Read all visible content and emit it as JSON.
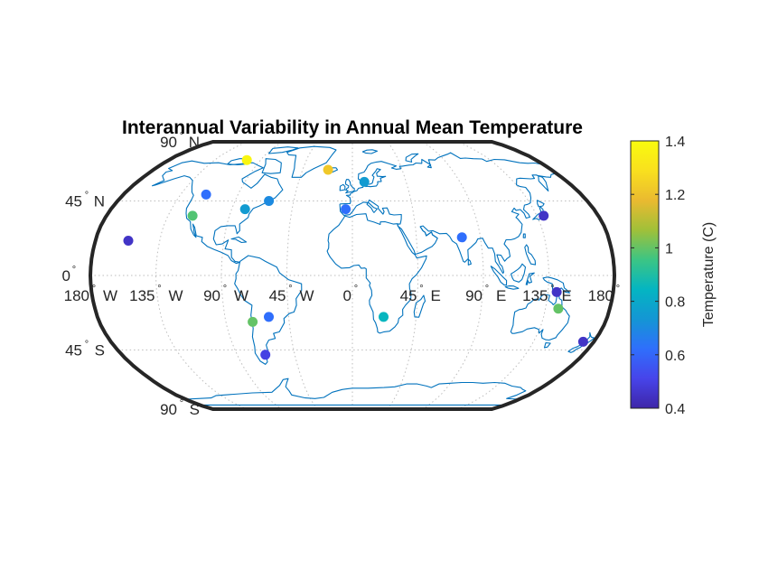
{
  "figure": {
    "title": "Interannual Variability in Annual Mean Temperature"
  },
  "map": {
    "projection": "Robinson",
    "frame_color": "#262626",
    "coastline_color": "#0072bd",
    "graticule": "dotted",
    "latitude_labels": [
      {
        "lat": 90,
        "value": "90",
        "hemi": "N"
      },
      {
        "lat": 45,
        "value": "45",
        "hemi": "N"
      },
      {
        "lat": 0,
        "value": "0",
        "hemi": ""
      },
      {
        "lat": -45,
        "value": "45",
        "hemi": "S"
      },
      {
        "lat": -90,
        "value": "90",
        "hemi": "S"
      }
    ],
    "longitude_labels": [
      {
        "lon": -180,
        "value": "180",
        "hemi": "W"
      },
      {
        "lon": -135,
        "value": "135",
        "hemi": "W"
      },
      {
        "lon": -90,
        "value": "90",
        "hemi": "W"
      },
      {
        "lon": -45,
        "value": "45",
        "hemi": "W"
      },
      {
        "lon": 0,
        "value": "0",
        "hemi": ""
      },
      {
        "lon": 45,
        "value": "45",
        "hemi": "E"
      },
      {
        "lon": 90,
        "value": "90",
        "hemi": "E"
      },
      {
        "lon": 135,
        "value": "135",
        "hemi": "E"
      },
      {
        "lon": 180,
        "value": "180",
        "hemi": ""
      }
    ]
  },
  "colorbar": {
    "label": "Temperature (C)",
    "min": 0.4,
    "max": 1.4,
    "ticks": [
      {
        "value": 0.4,
        "label": "0.4"
      },
      {
        "value": 0.6,
        "label": "0.6"
      },
      {
        "value": 0.8,
        "label": "0.8"
      },
      {
        "value": 1.0,
        "label": "1"
      },
      {
        "value": 1.2,
        "label": "1.2"
      },
      {
        "value": 1.4,
        "label": "1.4"
      }
    ],
    "colormap": [
      "#3e26a8",
      "#4744ea",
      "#2f6ffc",
      "#1496d4",
      "#04b5c2",
      "#3cc584",
      "#a0c039",
      "#eaba30",
      "#f9e01e",
      "#f9fb0e"
    ]
  },
  "stations": [
    {
      "lon": -103.5,
      "lat": 72,
      "value": 1.38
    },
    {
      "lon": -115,
      "lat": 49,
      "value": 0.62
    },
    {
      "lon": -117,
      "lat": 36,
      "value": 0.98
    },
    {
      "lon": -157,
      "lat": 21,
      "value": 0.45
    },
    {
      "lon": -80,
      "lat": 40,
      "value": 0.75
    },
    {
      "lon": -64,
      "lat": 45,
      "value": 0.7
    },
    {
      "lon": -22,
      "lat": 65,
      "value": 1.22
    },
    {
      "lon": 10,
      "lat": 57,
      "value": 0.75
    },
    {
      "lon": -5,
      "lat": 40,
      "value": 0.62
    },
    {
      "lon": 140,
      "lat": 36,
      "value": 0.45
    },
    {
      "lon": 77,
      "lat": 23,
      "value": 0.62
    },
    {
      "lon": 141,
      "lat": -10,
      "value": 0.45
    },
    {
      "lon": 144,
      "lat": -20,
      "value": 1.0
    },
    {
      "lon": 172,
      "lat": -40,
      "value": 0.45
    },
    {
      "lon": 22,
      "lat": -25,
      "value": 0.85
    },
    {
      "lon": -59,
      "lat": -25,
      "value": 0.62
    },
    {
      "lon": -71,
      "lat": -28,
      "value": 1.0
    },
    {
      "lon": -68,
      "lat": -48,
      "value": 0.5
    }
  ]
}
